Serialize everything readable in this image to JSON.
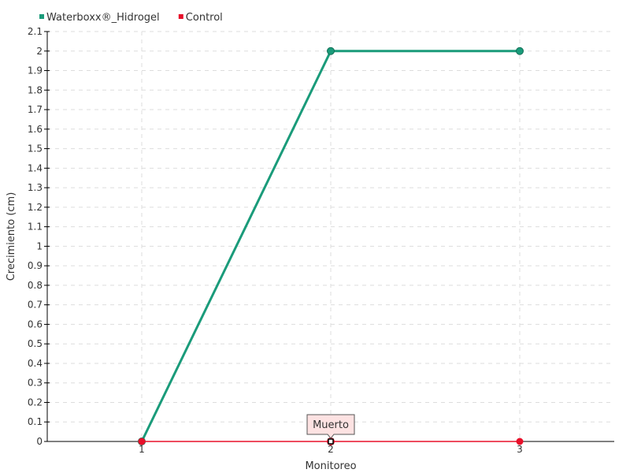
{
  "chart_data": {
    "type": "line",
    "xlabel": "Monitoreo",
    "ylabel": "Crecimiento (cm)",
    "categories": [
      "1",
      "2",
      "3"
    ],
    "ylim": [
      0,
      2.1
    ],
    "yticks": [
      "0",
      "0.1",
      "0.2",
      "0.3",
      "0.4",
      "0.5",
      "0.6",
      "0.7",
      "0.8",
      "0.9",
      "1",
      "1.1",
      "1.2",
      "1.3",
      "1.4",
      "1.5",
      "1.6",
      "1.7",
      "1.8",
      "1.9",
      "2",
      "2.1"
    ],
    "grid": true,
    "legend_position": "top-left",
    "series": [
      {
        "name": "Waterboxx®_Hidrogel",
        "color": "#1a9b7a",
        "values": [
          0,
          2,
          2
        ]
      },
      {
        "name": "Control",
        "color": "#e8102a",
        "values": [
          0,
          0,
          0
        ]
      }
    ],
    "tooltip": {
      "text": "Muerto",
      "series": "Control",
      "category": "2"
    }
  }
}
